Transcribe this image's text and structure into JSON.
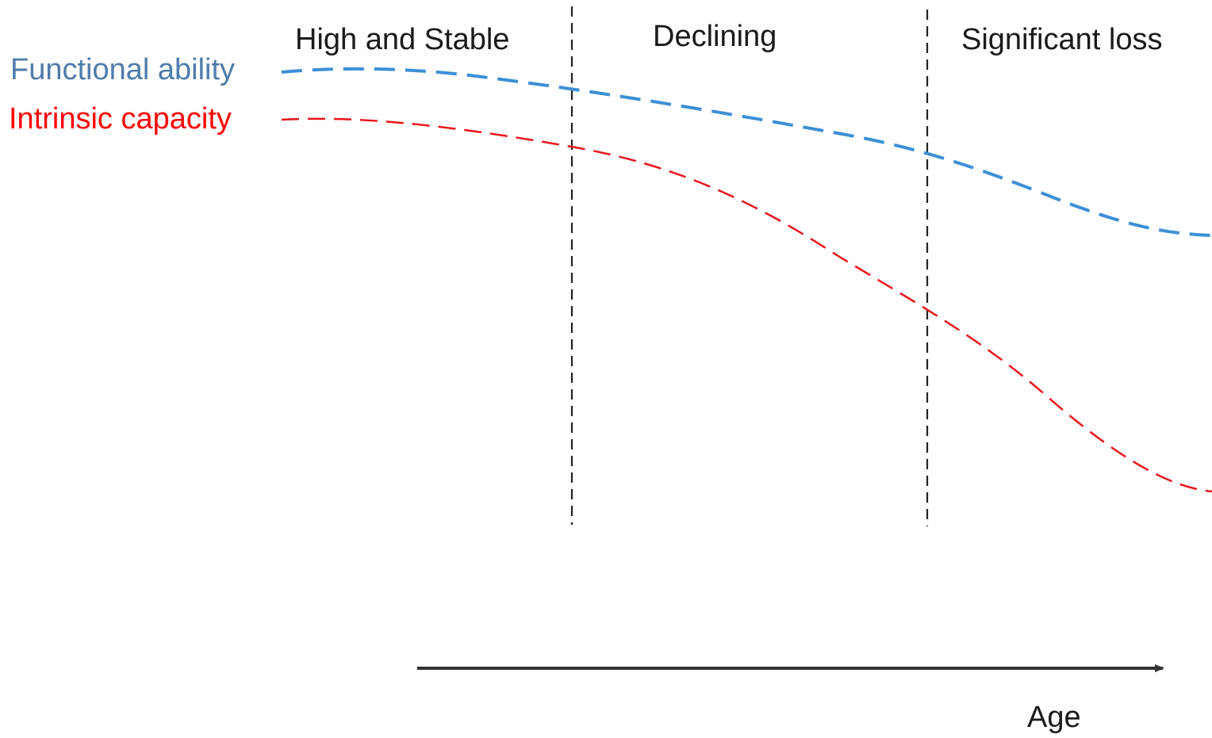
{
  "phases": [
    {
      "label": "High and Stable"
    },
    {
      "label": "Declining"
    },
    {
      "label": "Significant loss"
    }
  ],
  "curves": [
    {
      "label": "Functional ability",
      "label_color": "#4f7cab",
      "line_color": "#3d8fd6"
    },
    {
      "label": "Intrinsic capacity",
      "label_color": "#ff0000",
      "line_color": "#e8141c"
    }
  ],
  "axis": {
    "label": "Age",
    "color": "#333333"
  },
  "divider_color": "#222222"
}
